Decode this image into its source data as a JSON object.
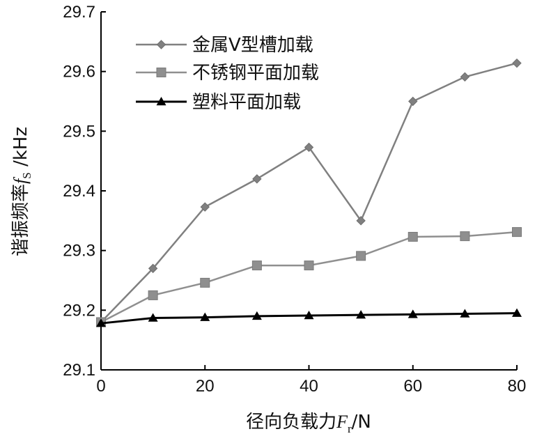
{
  "chart_data": {
    "type": "line",
    "x": [
      0,
      10,
      20,
      30,
      40,
      50,
      60,
      70,
      80
    ],
    "xlim": [
      0,
      80
    ],
    "ylim": [
      29.1,
      29.7
    ],
    "xticks": [
      "0",
      "20",
      "40",
      "60",
      "80"
    ],
    "yticks": [
      "29.1",
      "29.2",
      "29.3",
      "29.4",
      "29.5",
      "29.6",
      "29.7"
    ],
    "xlabel": {
      "prefix": "径向负载力",
      "var": "F",
      "sub": "r",
      "unit": "/N"
    },
    "ylabel": {
      "prefix": "谐振频率",
      "var": "f",
      "sub": "S",
      "unit": " /kHz"
    },
    "grid": false,
    "legend_position": "top-left",
    "series": [
      {
        "name": "金属V型槽加载",
        "marker": "diamond",
        "color": "#808080",
        "values": [
          29.18,
          29.27,
          29.373,
          29.42,
          29.473,
          29.35,
          29.55,
          29.591,
          29.614
        ]
      },
      {
        "name": "不锈钢平面加载",
        "marker": "square",
        "color": "#8f8f8f",
        "values": [
          29.18,
          29.225,
          29.246,
          29.275,
          29.275,
          29.291,
          29.323,
          29.324,
          29.331
        ]
      },
      {
        "name": "塑料平面加载",
        "marker": "triangle",
        "color": "#000000",
        "values": [
          29.178,
          29.187,
          29.188,
          29.19,
          29.191,
          29.192,
          29.193,
          29.194,
          29.195
        ]
      }
    ]
  }
}
